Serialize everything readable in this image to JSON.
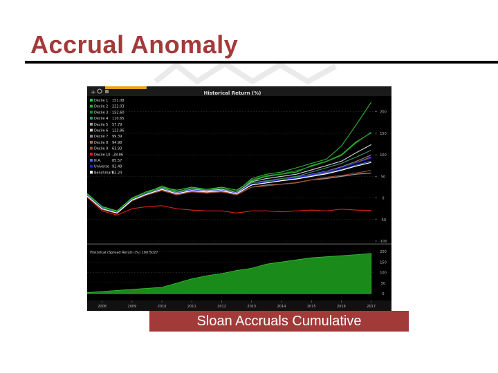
{
  "slide": {
    "title": "Accrual Anomaly",
    "caption": "Sloan Accruals Cumulative",
    "colors": {
      "title": "#a33a3a",
      "caption_bg": "#a33a3a",
      "caption_text": "#ffffff",
      "terminal_bg": "#000000"
    }
  },
  "toolbar": {
    "icons": [
      "plus-icon",
      "zoom-icon",
      "settings-icon"
    ]
  },
  "chart_data": [
    {
      "type": "line",
      "title": "Historical Return (%)",
      "x": [
        2008,
        2008.5,
        2009,
        2009.5,
        2010,
        2010.5,
        2011,
        2011.5,
        2012,
        2012.5,
        2013,
        2013.5,
        2014,
        2014.5,
        2015,
        2015.5,
        2016,
        2016.5,
        2017,
        2017.5
      ],
      "xticks": [
        "2008",
        "2009",
        "2010",
        "2011",
        "2012",
        "2013",
        "2014",
        "2015",
        "2016",
        "2017"
      ],
      "ylim": [
        -100,
        230
      ],
      "yticks": [
        "200",
        "150",
        "100",
        "50",
        "0",
        "-50",
        "-100"
      ],
      "legend_position": "top-left",
      "series": [
        {
          "name": "Decile 1",
          "legend_value": "151.08",
          "color": "#34c53a",
          "values": [
            10,
            -20,
            -30,
            0,
            15,
            25,
            18,
            25,
            20,
            25,
            18,
            40,
            50,
            55,
            60,
            75,
            85,
            100,
            130,
            151.08
          ]
        },
        {
          "name": "Decile 2",
          "legend_value": "222.03",
          "color": "#2aa832",
          "values": [
            8,
            -22,
            -32,
            -2,
            12,
            28,
            15,
            22,
            20,
            22,
            15,
            45,
            55,
            60,
            70,
            80,
            90,
            120,
            170,
            222.03
          ]
        },
        {
          "name": "Decile 3",
          "legend_value": "152.60",
          "color": "#1f8a2a",
          "values": [
            7,
            -23,
            -33,
            -3,
            11,
            24,
            14,
            21,
            19,
            22,
            15,
            42,
            52,
            56,
            63,
            73,
            84,
            98,
            128,
            152.6
          ]
        },
        {
          "name": "Decile 4",
          "legend_value": "110.65",
          "color": "#3e8e6a",
          "values": [
            6,
            -25,
            -35,
            -5,
            10,
            20,
            10,
            18,
            15,
            18,
            10,
            35,
            40,
            45,
            50,
            60,
            70,
            80,
            95,
            110.65
          ]
        },
        {
          "name": "Decile 5",
          "legend_value": "57.79",
          "color": "#9b9b9b",
          "values": [
            5,
            -26,
            -36,
            -6,
            8,
            18,
            8,
            15,
            12,
            15,
            8,
            25,
            30,
            32,
            35,
            42,
            45,
            50,
            55,
            57.79
          ]
        },
        {
          "name": "Decile 6",
          "legend_value": "123.86",
          "color": "#c9c9c9",
          "values": [
            6,
            -25,
            -35,
            -4,
            10,
            22,
            12,
            20,
            17,
            20,
            12,
            38,
            45,
            50,
            55,
            65,
            75,
            85,
            105,
            123.86
          ]
        },
        {
          "name": "Decile 7",
          "legend_value": "99.39",
          "color": "#8a8a8a",
          "values": [
            5,
            -25,
            -34,
            -5,
            9,
            20,
            10,
            18,
            14,
            17,
            10,
            32,
            38,
            42,
            48,
            55,
            62,
            72,
            85,
            99.39
          ]
        },
        {
          "name": "Decile 8",
          "legend_value": "94.98",
          "color": "#b46a3a",
          "values": [
            5,
            -26,
            -35,
            -6,
            8,
            19,
            9,
            16,
            13,
            16,
            9,
            30,
            35,
            40,
            45,
            52,
            60,
            70,
            82,
            94.98
          ]
        },
        {
          "name": "Decile 9",
          "legend_value": "63.93",
          "color": "#9a4a2a",
          "values": [
            4,
            -27,
            -36,
            -7,
            7,
            17,
            7,
            14,
            11,
            14,
            7,
            25,
            28,
            32,
            36,
            42,
            48,
            52,
            58,
            63.93
          ]
        },
        {
          "name": "Decile 10",
          "legend_value": "-28.86",
          "color": "#d42020",
          "values": [
            2,
            -30,
            -40,
            -25,
            -20,
            -18,
            -25,
            -28,
            -30,
            -30,
            -35,
            -30,
            -30,
            -32,
            -30,
            -28,
            -30,
            -26,
            -28,
            -28.86
          ]
        },
        {
          "name": "N.A.",
          "legend_value": "85.57",
          "color": "#4a6cd4",
          "values": [
            5,
            -24,
            -34,
            -4,
            9,
            20,
            10,
            18,
            14,
            17,
            10,
            30,
            35,
            40,
            45,
            52,
            58,
            66,
            76,
            85.57
          ]
        },
        {
          "name": "Universe",
          "legend_value": "92.48",
          "color": "#1c1cd8",
          "values": [
            5,
            -24,
            -34,
            -4,
            10,
            21,
            11,
            19,
            15,
            18,
            11,
            32,
            37,
            42,
            47,
            54,
            61,
            70,
            81,
            92.48
          ]
        },
        {
          "name": "Benchmark",
          "legend_value": "82.24",
          "color": "#ffffff",
          "values": [
            4,
            -25,
            -35,
            -5,
            9,
            20,
            10,
            17,
            14,
            17,
            10,
            30,
            35,
            40,
            44,
            50,
            56,
            64,
            74,
            82.24
          ]
        }
      ]
    },
    {
      "type": "area",
      "title": "Historical (Spread Return (%) 190.5027",
      "x": [
        2008,
        2008.5,
        2009,
        2009.5,
        2010,
        2010.5,
        2011,
        2011.5,
        2012,
        2012.5,
        2013,
        2013.5,
        2014,
        2014.5,
        2015,
        2015.5,
        2016,
        2016.5,
        2017,
        2017.5
      ],
      "values": [
        5,
        10,
        15,
        20,
        25,
        30,
        50,
        70,
        85,
        95,
        110,
        120,
        140,
        150,
        160,
        170,
        175,
        180,
        185,
        190.5
      ],
      "ylim": [
        0,
        210
      ],
      "yticks": [
        "200",
        "150",
        "100",
        "50",
        "0"
      ],
      "color": "#1a8a1a"
    }
  ]
}
